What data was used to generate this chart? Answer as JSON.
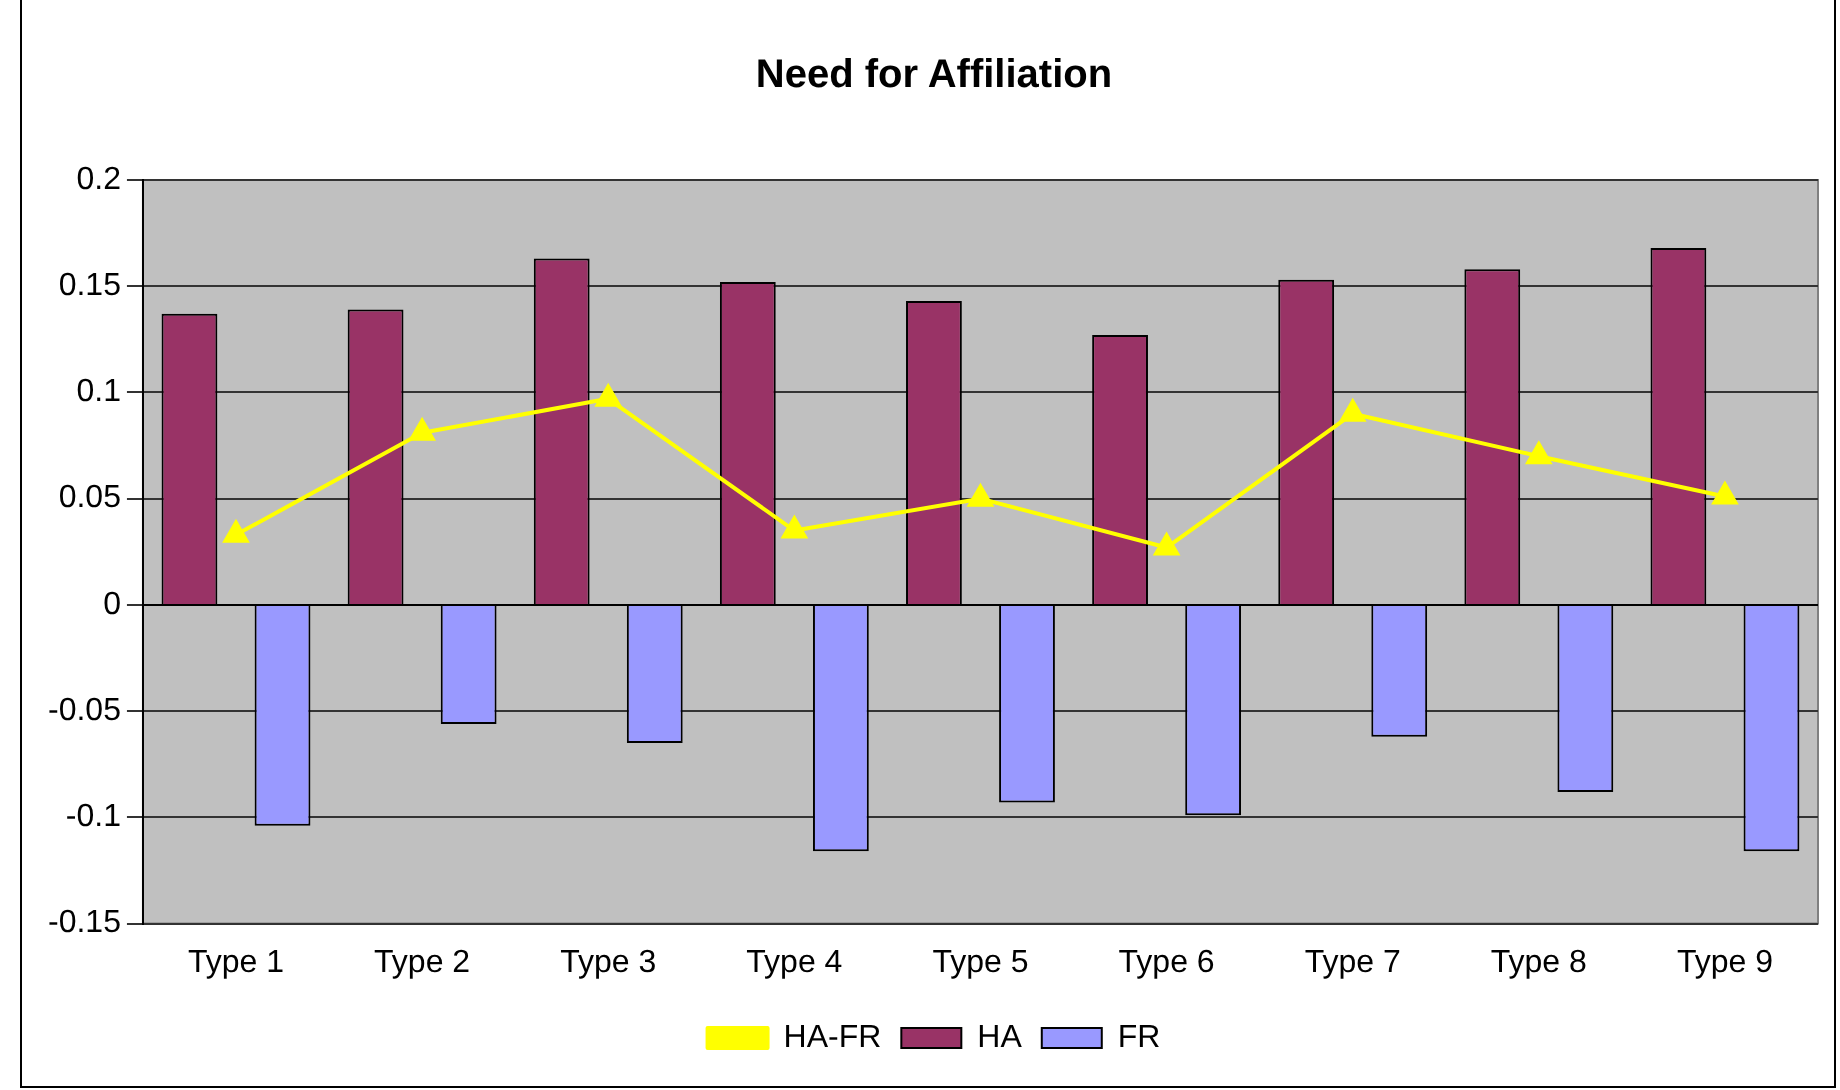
{
  "chart_data": {
    "type": "bar",
    "title": "Need for Affiliation",
    "categories": [
      "Type 1",
      "Type 2",
      "Type 3",
      "Type 4",
      "Type 5",
      "Type 6",
      "Type 7",
      "Type 8",
      "Type 9"
    ],
    "series": [
      {
        "name": "HA",
        "color": "#993366",
        "values": [
          0.137,
          0.139,
          0.163,
          0.152,
          0.143,
          0.127,
          0.153,
          0.158,
          0.168
        ]
      },
      {
        "name": "FR",
        "color": "#9999ff",
        "values": [
          -0.104,
          -0.056,
          -0.065,
          -0.116,
          -0.093,
          -0.099,
          -0.062,
          -0.088,
          -0.116
        ]
      },
      {
        "name": "HA-FR",
        "type": "line",
        "color": "#ffff00",
        "values": [
          0.033,
          0.081,
          0.097,
          0.035,
          0.05,
          0.027,
          0.09,
          0.07,
          0.051
        ]
      }
    ],
    "ylim": [
      -0.15,
      0.2
    ],
    "yticks": [
      -0.15,
      -0.1,
      -0.05,
      0,
      0.05,
      0.1,
      0.15,
      0.2
    ],
    "grid": "y",
    "legend": "bottom",
    "marker": "triangle"
  }
}
